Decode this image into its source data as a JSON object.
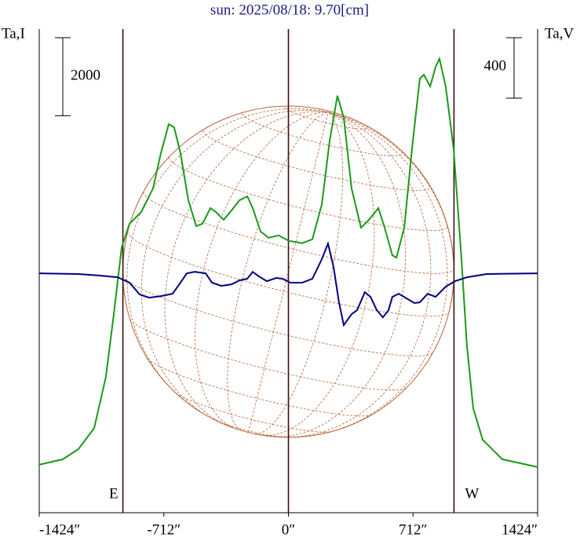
{
  "chart_data": {
    "type": "line",
    "title": "sun: 2025/08/18: 9.70[cm]",
    "y_label": "Ta,I",
    "y2_label": "Ta,V",
    "xlim": [
      -1424,
      1424
    ],
    "xticks": [
      {
        "value": -1424,
        "label": "-1424″"
      },
      {
        "value": -712,
        "label": "-712″"
      },
      {
        "value": 0,
        "label": "0″"
      },
      {
        "value": 712,
        "label": "712″"
      },
      {
        "value": 1424,
        "label": "1424″"
      }
    ],
    "ylim": [
      0,
      12400
    ],
    "y2lim": [
      -1584,
      1616
    ],
    "y_scale_bar": 2000,
    "y2_scale_bar": 400,
    "markers": [
      {
        "x": -946,
        "label": "E"
      },
      {
        "x": 0
      },
      {
        "x": 946,
        "label": "W"
      }
    ],
    "series": [
      {
        "name": "I",
        "color": "#1a9a1a",
        "x": [
          -1424,
          -1289,
          -1200,
          -1110,
          -1043,
          -998,
          -953,
          -908,
          -841,
          -774,
          -729,
          -684,
          -653,
          -617,
          -572,
          -527,
          -491,
          -446,
          -415,
          -370,
          -325,
          -280,
          -235,
          -204,
          -159,
          -114,
          -56,
          2,
          78,
          137,
          191,
          235,
          280,
          316,
          361,
          415,
          460,
          514,
          550,
          594,
          617,
          662,
          706,
          751,
          774,
          810,
          841,
          863,
          899,
          944,
          989,
          1020,
          1056,
          1110,
          1222,
          1424
        ],
        "values": [
          1230,
          1370,
          1630,
          2170,
          3480,
          5090,
          6800,
          7410,
          7710,
          8310,
          9220,
          9960,
          9880,
          9220,
          8010,
          7350,
          7410,
          7810,
          7710,
          7510,
          7750,
          8010,
          8110,
          7810,
          7210,
          7050,
          7110,
          6970,
          6910,
          7010,
          7910,
          9520,
          10690,
          10130,
          8310,
          7310,
          7510,
          7810,
          7310,
          6600,
          6540,
          7310,
          9320,
          11130,
          11230,
          10930,
          11430,
          11640,
          10930,
          9320,
          6500,
          4290,
          2680,
          1870,
          1370,
          1170
        ]
      },
      {
        "name": "V",
        "color": "#000080",
        "axis": "y2",
        "x": [
          -1424,
          -1200,
          -1065,
          -976,
          -908,
          -850,
          -796,
          -729,
          -662,
          -617,
          -581,
          -536,
          -473,
          -437,
          -383,
          -325,
          -280,
          -235,
          -204,
          -168,
          -123,
          -70,
          -34,
          11,
          78,
          137,
          191,
          226,
          258,
          289,
          316,
          361,
          392,
          437,
          469,
          505,
          540,
          572,
          594,
          630,
          675,
          720,
          751,
          796,
          841,
          899,
          953,
          1020,
          1132,
          1424
        ],
        "values": [
          0,
          -5,
          -16,
          -26,
          -62,
          -140,
          -161,
          -151,
          -135,
          -62,
          0,
          10,
          0,
          -62,
          -83,
          -73,
          -47,
          -36,
          10,
          -21,
          -52,
          -31,
          -36,
          -62,
          -62,
          -36,
          94,
          197,
          42,
          -192,
          -343,
          -270,
          -244,
          -125,
          -156,
          -244,
          -291,
          -244,
          -156,
          -135,
          -166,
          -197,
          -192,
          -135,
          -156,
          -88,
          -52,
          -26,
          -5,
          0
        ]
      }
    ]
  }
}
